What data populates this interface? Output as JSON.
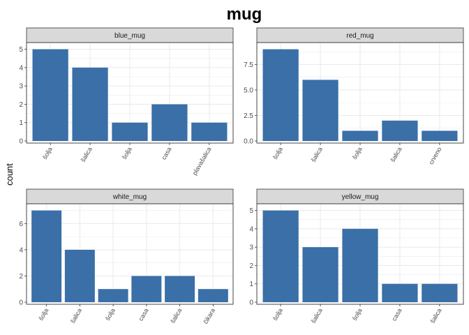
{
  "chart_data": {
    "type": "bar",
    "title": "mug",
    "ylabel": "count",
    "xlabel": "",
    "grid": true,
    "colors": {
      "bar": "#3a6fa8",
      "strip": "#d9d9d9",
      "grid": "#ebebeb",
      "border": "#333333"
    },
    "panels": [
      {
        "name": "blue_mug",
        "categories": [
          "šolja",
          "šalica",
          "šolja",
          "casa",
          "plavašalica"
        ],
        "values": [
          5,
          4,
          1,
          2,
          1
        ],
        "ylim": [
          0,
          5.25
        ],
        "yticks": [
          0,
          1,
          2,
          3,
          4,
          5
        ],
        "ytick_labels": [
          "0",
          "1",
          "2",
          "3",
          "4",
          "5"
        ]
      },
      {
        "name": "red_mug",
        "categories": [
          "šolja",
          "šalica",
          "šolja",
          "šalica",
          "crveno"
        ],
        "values": [
          9,
          6,
          1,
          2,
          1
        ],
        "ylim": [
          0,
          9.45
        ],
        "yticks": [
          0,
          2.5,
          5,
          7.5
        ],
        "ytick_labels": [
          "0.0",
          "2.5",
          "5.0",
          "7.5"
        ]
      },
      {
        "name": "white_mug",
        "categories": [
          "šolja",
          "šalica",
          "šolja",
          "casa",
          "šalica",
          "čikara"
        ],
        "values": [
          7,
          4,
          1,
          2,
          2,
          1
        ],
        "ylim": [
          0,
          7.35
        ],
        "yticks": [
          0,
          2,
          4,
          6
        ],
        "ytick_labels": [
          "0",
          "2",
          "4",
          "6"
        ]
      },
      {
        "name": "yellow_mug",
        "categories": [
          "šolja",
          "šalica",
          "šolja",
          "casa",
          "šalica"
        ],
        "values": [
          5,
          3,
          4,
          1,
          1
        ],
        "ylim": [
          0,
          5.25
        ],
        "yticks": [
          0,
          1,
          2,
          3,
          4,
          5
        ],
        "ytick_labels": [
          "0",
          "1",
          "2",
          "3",
          "4",
          "5"
        ]
      }
    ]
  }
}
